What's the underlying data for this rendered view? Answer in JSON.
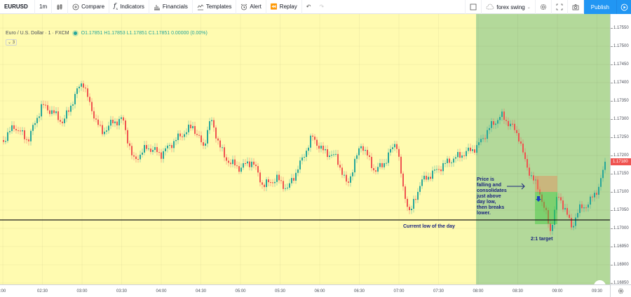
{
  "toolbar": {
    "symbol": "EURUSD",
    "interval": "1m",
    "compare": "Compare",
    "indicators": "Indicators",
    "financials": "Financials",
    "templates": "Templates",
    "alert": "Alert",
    "replay": "Replay",
    "layout_name": "forex swing",
    "publish": "Publish"
  },
  "legend": {
    "title": "Euro / U.S. Dollar · 1 · FXCM",
    "ohlc": "O1.17851 H1.17853 L1.17851 C1.17851 0.00000 (0.00%)",
    "collapse": "⌄ 3"
  },
  "y_axis": {
    "labels": [
      "1.17550",
      "1.17500",
      "1.17450",
      "1.17400",
      "1.17350",
      "1.17300",
      "1.17250",
      "1.17200",
      "1.17150",
      "1.17100",
      "1.17050",
      "1.17000",
      "1.16950",
      "1.16900",
      "1.16850"
    ],
    "current_price": "1.17180",
    "current_price_color": "#ef5350"
  },
  "x_axis": {
    "labels": [
      ":00",
      "02:30",
      "03:00",
      "03:30",
      "04:00",
      "04:30",
      "05:00",
      "05:30",
      "06:00",
      "06:30",
      "07:00",
      "07:30",
      "08:00",
      "08:30",
      "09:00",
      "09:30"
    ]
  },
  "annotations": {
    "low_of_day": "Current low of the day",
    "explanation": [
      "Price is",
      "falling and",
      "consolidates",
      "just above",
      "day low,",
      "then breaks",
      "lower."
    ],
    "target": "2:1 target"
  },
  "colors": {
    "session_bg": "#fffbb0",
    "highlight_bg": "#b3d99a",
    "up_candle": "#26a69a",
    "down_candle": "#ef5350",
    "annotation": "#1a237e",
    "accent": "#2196f3"
  }
}
